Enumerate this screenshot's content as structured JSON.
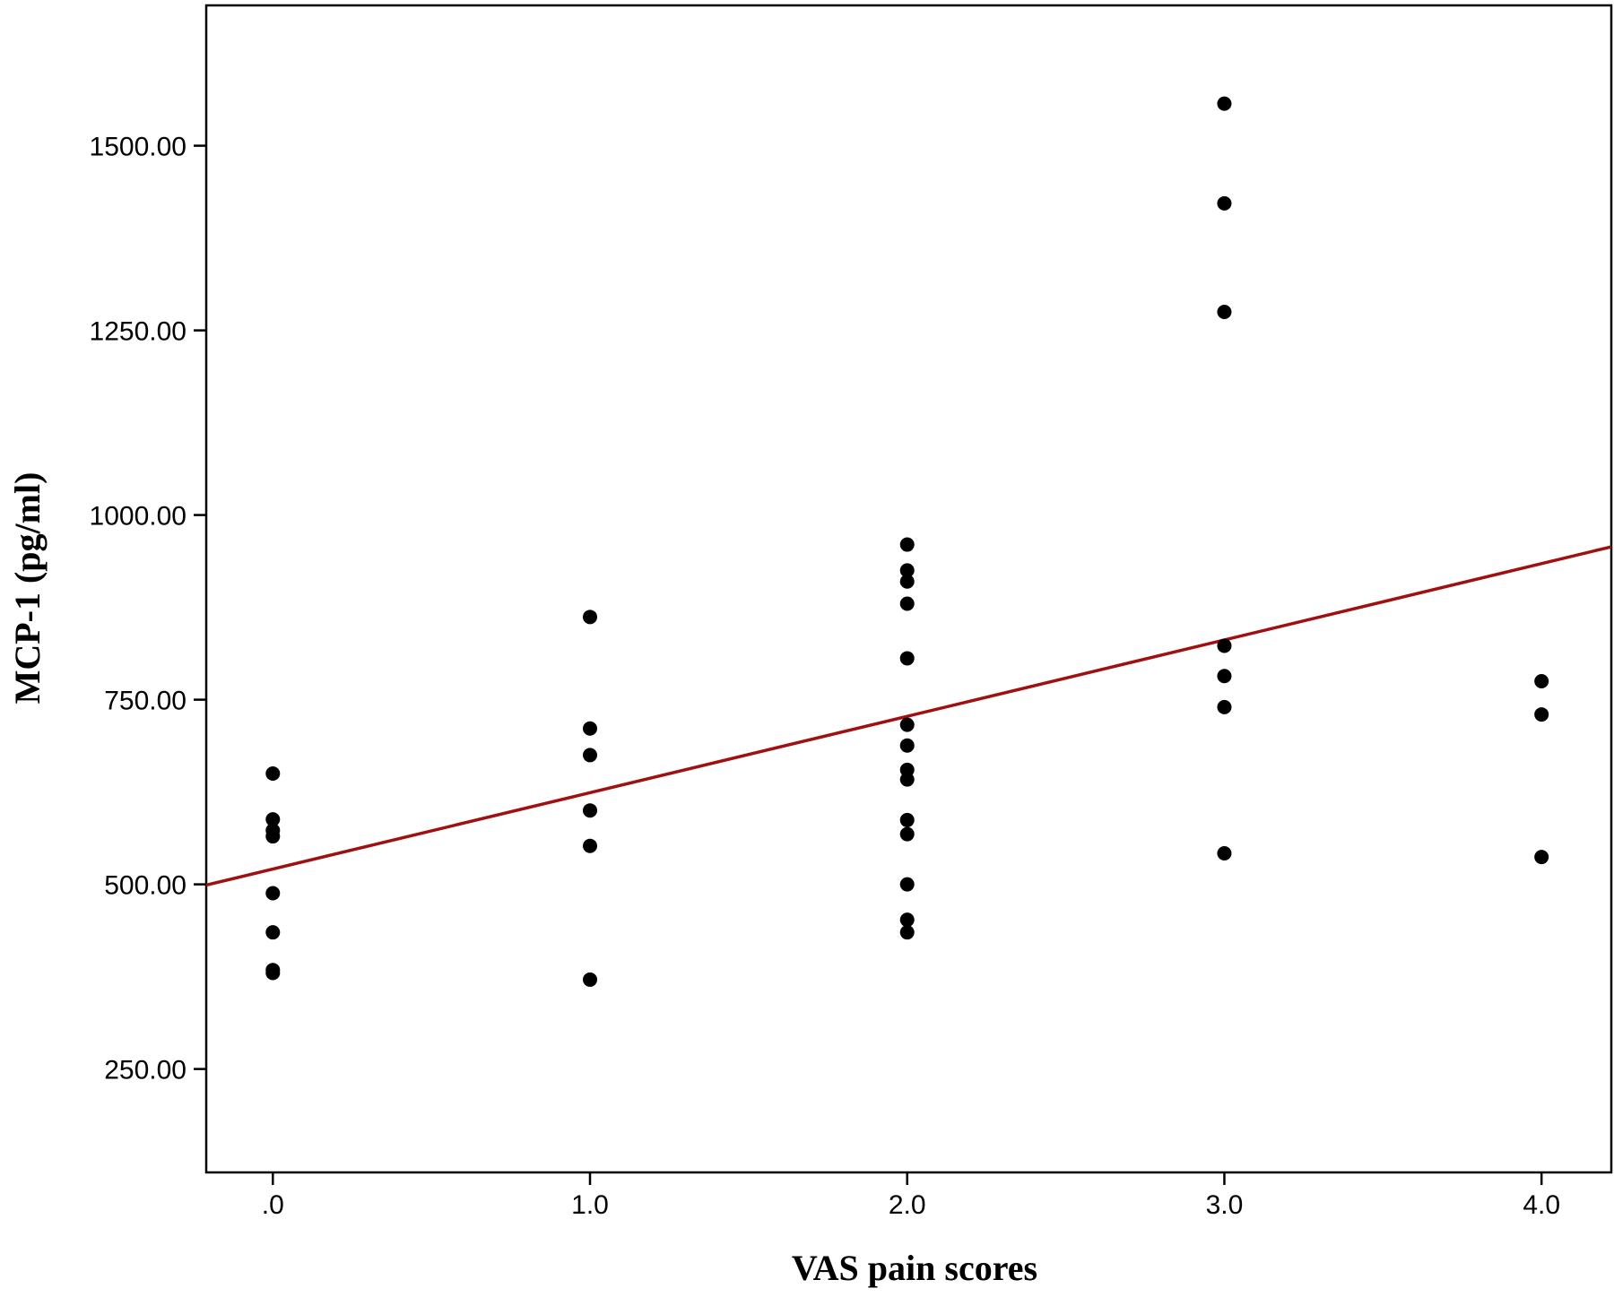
{
  "chart_data": {
    "type": "scatter",
    "title": "",
    "xlabel": "VAS pain scores",
    "ylabel": "MCP-1 (pg/ml)",
    "xlim": [
      -0.21,
      4.22
    ],
    "ylim": [
      110,
      1690
    ],
    "x_ticks": [
      {
        "value": 0,
        "label": ".0"
      },
      {
        "value": 1,
        "label": "1.0"
      },
      {
        "value": 2,
        "label": "2.0"
      },
      {
        "value": 3,
        "label": "3.0"
      },
      {
        "value": 4,
        "label": "4.0"
      }
    ],
    "y_ticks": [
      {
        "value": 250,
        "label": "250.00"
      },
      {
        "value": 500,
        "label": "500.00"
      },
      {
        "value": 750,
        "label": "750.00"
      },
      {
        "value": 1000,
        "label": "1000.00"
      },
      {
        "value": 1250,
        "label": "1250.00"
      },
      {
        "value": 1500,
        "label": "1500.00"
      }
    ],
    "grid": false,
    "points": [
      {
        "x": 0,
        "y": 650
      },
      {
        "x": 0,
        "y": 588
      },
      {
        "x": 0,
        "y": 573
      },
      {
        "x": 0,
        "y": 565
      },
      {
        "x": 0,
        "y": 488
      },
      {
        "x": 0,
        "y": 435
      },
      {
        "x": 0,
        "y": 384
      },
      {
        "x": 0,
        "y": 380
      },
      {
        "x": 1,
        "y": 862
      },
      {
        "x": 1,
        "y": 711
      },
      {
        "x": 1,
        "y": 675
      },
      {
        "x": 1,
        "y": 600
      },
      {
        "x": 1,
        "y": 552
      },
      {
        "x": 1,
        "y": 371
      },
      {
        "x": 2,
        "y": 960
      },
      {
        "x": 2,
        "y": 925
      },
      {
        "x": 2,
        "y": 910
      },
      {
        "x": 2,
        "y": 880
      },
      {
        "x": 2,
        "y": 806
      },
      {
        "x": 2,
        "y": 716
      },
      {
        "x": 2,
        "y": 688
      },
      {
        "x": 2,
        "y": 655
      },
      {
        "x": 2,
        "y": 642
      },
      {
        "x": 2,
        "y": 587
      },
      {
        "x": 2,
        "y": 568
      },
      {
        "x": 2,
        "y": 500
      },
      {
        "x": 2,
        "y": 452
      },
      {
        "x": 2,
        "y": 435
      },
      {
        "x": 3,
        "y": 1557
      },
      {
        "x": 3,
        "y": 1422
      },
      {
        "x": 3,
        "y": 1275
      },
      {
        "x": 3,
        "y": 823
      },
      {
        "x": 3,
        "y": 782
      },
      {
        "x": 3,
        "y": 740
      },
      {
        "x": 3,
        "y": 542
      },
      {
        "x": 4,
        "y": 775
      },
      {
        "x": 4,
        "y": 730
      },
      {
        "x": 4,
        "y": 537
      }
    ],
    "fit_line": {
      "x": [
        -0.21,
        4.22
      ],
      "y": [
        499,
        957
      ]
    },
    "colors": {
      "points": "#000000",
      "fit_line": "#a01010",
      "axes": "#000000"
    }
  }
}
